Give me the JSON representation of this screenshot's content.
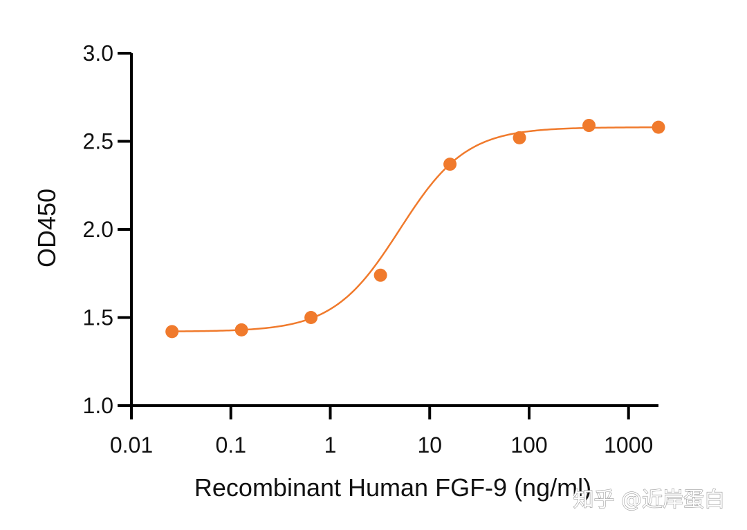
{
  "chart_data": {
    "type": "scatter",
    "title": "",
    "xlabel": "Recombinant Human FGF-9 (ng/ml)",
    "ylabel": "OD450",
    "x_scale": "log",
    "xlim": [
      0.01,
      2000
    ],
    "ylim": [
      1.0,
      3.0
    ],
    "x_ticks": [
      0.01,
      0.1,
      1,
      10,
      100,
      1000
    ],
    "x_tick_labels": [
      "0.01",
      "0.1",
      "1",
      "10",
      "100",
      "1000"
    ],
    "y_ticks": [
      1.0,
      1.5,
      2.0,
      2.5,
      3.0
    ],
    "y_tick_labels": [
      "1.0",
      "1.5",
      "2.0",
      "2.5",
      "3.0"
    ],
    "grid": false,
    "legend": "none",
    "series": [
      {
        "x": [
          0.0256,
          0.128,
          0.64,
          3.2,
          16,
          80,
          400,
          2000
        ],
        "y": [
          1.42,
          1.43,
          1.5,
          1.74,
          2.37,
          2.52,
          2.59,
          2.58
        ]
      }
    ],
    "fit_curve": {
      "model": "4PL sigmoid",
      "bottom": 1.42,
      "top": 2.58,
      "ec50": 5.0,
      "hill": 1.3
    },
    "color": "#F07A2C"
  },
  "watermark": "知乎 @近岸蛋白"
}
